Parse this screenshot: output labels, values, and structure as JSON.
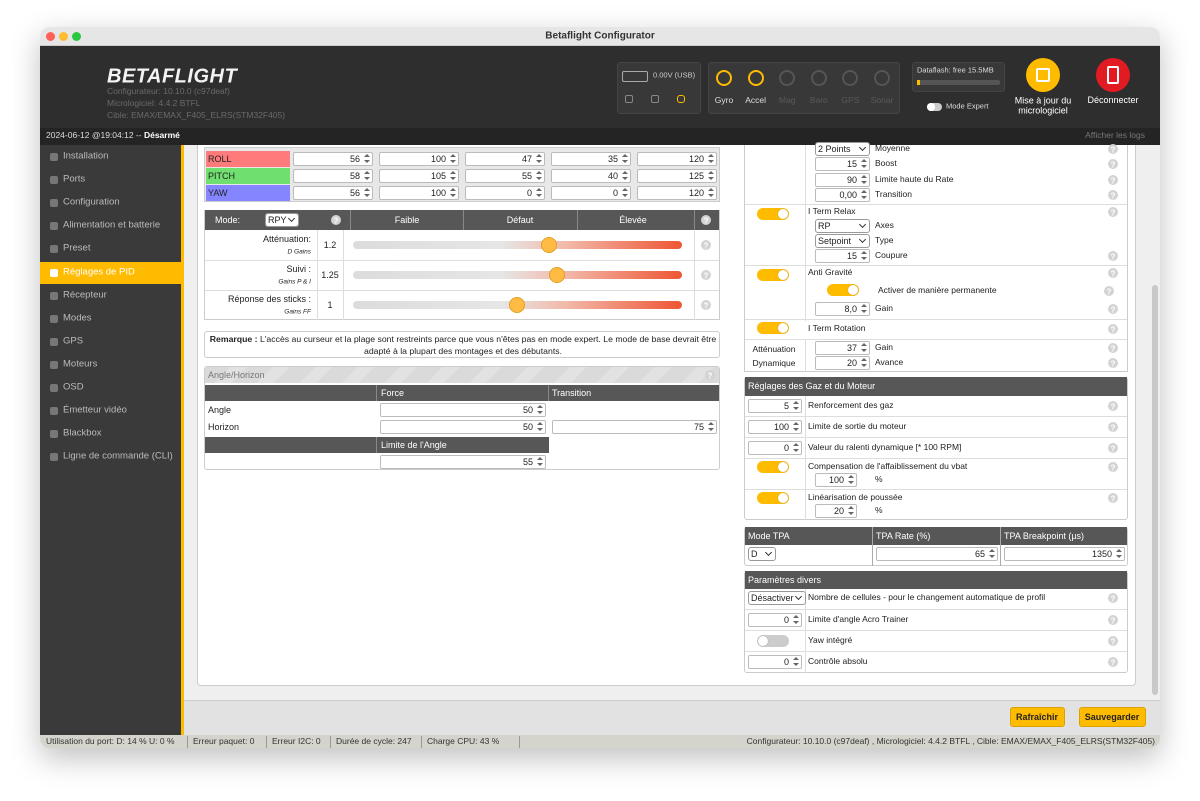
{
  "window": {
    "title": "Betaflight Configurator"
  },
  "header": {
    "logo": "BETAFLIGHT",
    "info": [
      "Configurateur: 10.10.0 (c97deaf)",
      "Micrologiciel: 4.4.2 BTFL",
      "Cible: EMAX/EMAX_F405_ELRS(STM32F405)"
    ],
    "battery": "0.00V (USB)",
    "sensors": [
      {
        "name": "Gyro",
        "active": true
      },
      {
        "name": "Accel",
        "active": true
      },
      {
        "name": "Mag",
        "active": false
      },
      {
        "name": "Baro",
        "active": false
      },
      {
        "name": "GPS",
        "active": false
      },
      {
        "name": "Sonar",
        "active": false
      }
    ],
    "dataflash": "Dataflash: free 15.5MB",
    "expert_mode": "Mode Expert",
    "update": "Mise à jour du micrologiciel",
    "disconnect": "Déconnecter"
  },
  "status_bar": {
    "datetime": "2024-06-12 @19:04:12 -- ",
    "state": "Désarmé",
    "logs": "Afficher les logs"
  },
  "sidebar": {
    "active": 5,
    "items": [
      "Installation",
      "Ports",
      "Configuration",
      "Alimentation et batterie",
      "Preset",
      "Réglages de PID",
      "Récepteur",
      "Modes",
      "GPS",
      "Moteurs",
      "OSD",
      "Émetteur vidéo",
      "Blackbox",
      "Ligne de commande (CLI)"
    ]
  },
  "help": "?",
  "pid": {
    "rows": [
      {
        "name": "ROLL",
        "color": "#ff7a7a",
        "values": [
          "56",
          "100",
          "47",
          "35",
          "120"
        ]
      },
      {
        "name": "PITCH",
        "color": "#6fe06f",
        "values": [
          "58",
          "105",
          "55",
          "40",
          "125"
        ]
      },
      {
        "name": "YAW",
        "color": "#8585ff",
        "values": [
          "56",
          "100",
          "0",
          "0",
          "120"
        ]
      }
    ]
  },
  "sliders": {
    "mode_label": "Mode:",
    "mode": "RPY",
    "levels": [
      "Faible",
      "Défaut",
      "Élevée"
    ],
    "rows": [
      {
        "label": "Atténuation:",
        "sublabel": "D Gains",
        "value": 1.2
      },
      {
        "label": "Suivi :",
        "sublabel": "Gains P & I",
        "value": 1.25
      },
      {
        "label": "Réponse des sticks :",
        "sublabel": "Gains FF",
        "value": 1
      }
    ]
  },
  "note": {
    "label": "Remarque :",
    "text": "L'accès au curseur et la plage sont restreints parce que vous n'êtes pas en mode expert. Le mode de base devrait être adapté à la plupart des montages et des débutants."
  },
  "angle_horizon": {
    "title": "Angle/Horizon",
    "columns": [
      "Force",
      "Transition"
    ],
    "rows": [
      {
        "label": "Angle",
        "force": "50"
      },
      {
        "label": "Horizon",
        "force": "50",
        "transition": "75"
      }
    ],
    "limit_label": "Limite de l'Angle",
    "limit": "55"
  },
  "filters": {
    "rows": [
      {
        "select": "2 Points",
        "label": "Moyenne"
      },
      {
        "input": "15",
        "label": "Boost"
      },
      {
        "input": "90",
        "label": "Limite haute du Rate"
      },
      {
        "input": "0,00",
        "label": "Transition"
      }
    ]
  },
  "iterm_relax": {
    "title": "I Term Relax",
    "enabled": true,
    "axes": "RP",
    "axes_label": "Axes",
    "type": "Setpoint",
    "type_label": "Type",
    "cutoff": "15",
    "cutoff_label": "Coupure"
  },
  "anti_gravity": {
    "title": "Anti Gravité",
    "enabled": true,
    "permanent": true,
    "permanent_label": "Activer de manière permanente",
    "gain": "8,0",
    "gain_label": "Gain"
  },
  "iterm_rotation": {
    "title": "I Term Rotation",
    "enabled": true
  },
  "dynamic_damping": {
    "title": "Atténuation Dynamique",
    "gain": "37",
    "gain_label": "Gain",
    "advance": "20",
    "advance_label": "Avance"
  },
  "throttle": {
    "title": "Réglages des Gaz et du Moteur",
    "rows": [
      {
        "value": "5",
        "label": "Renforcement des gaz"
      },
      {
        "value": "100",
        "label": "Limite de sortie du moteur"
      },
      {
        "value": "0",
        "label": "Valeur du ralenti dynamique [* 100 RPM]"
      },
      {
        "enabled": true,
        "label": "Compensation de l'affaiblissement du vbat",
        "value": "100",
        "unit": "%"
      },
      {
        "enabled": true,
        "label": "Linéarisation de poussée",
        "value": "20",
        "unit": "%"
      }
    ]
  },
  "tpa": {
    "columns": [
      "Mode TPA",
      "TPA Rate (%)",
      "TPA Breakpoint (µs)"
    ],
    "mode": "D",
    "rate": "65",
    "breakpoint": "1350"
  },
  "misc": {
    "title": "Paramètres divers",
    "rows": [
      {
        "select": "Désactiver",
        "label": "Nombre de cellules - pour le changement automatique de profil"
      },
      {
        "input": "0",
        "label": "Limite d'angle Acro Trainer"
      },
      {
        "toggle": false,
        "label": "Yaw intégré"
      },
      {
        "input": "0",
        "label": "Contrôle absolu"
      }
    ]
  },
  "toolbar": {
    "refresh": "Rafraîchir",
    "save": "Sauvegarder"
  },
  "footer": {
    "left": [
      "Utilisation du port: D: 14 % U: 0 %",
      "Erreur paquet: 0",
      "Erreur I2C: 0",
      "Durée de cycle: 247",
      "Charge CPU: 43 %"
    ],
    "right": "Configurateur: 10.10.0 (c97deaf) , Micrologiciel: 4.4.2 BTFL , Cible: EMAX/EMAX_F405_ELRS(STM32F405)"
  }
}
